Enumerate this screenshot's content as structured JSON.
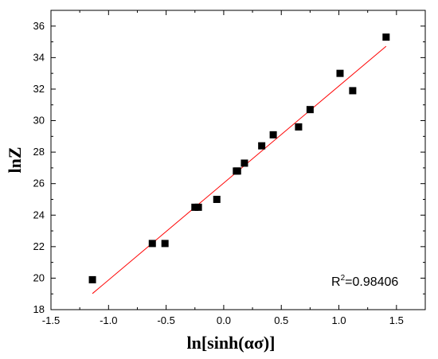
{
  "chart_data": {
    "type": "scatter",
    "xlabel": "ln[sinh(ασ)]",
    "ylabel": "lnZ",
    "xlim": [
      -1.5,
      1.75
    ],
    "ylim": [
      18,
      37
    ],
    "x_ticks": [
      -1.5,
      -1.0,
      -0.5,
      0.0,
      0.5,
      1.0,
      1.5
    ],
    "x_tick_labels": [
      "-1.5",
      "-1.0",
      "-0.5",
      "0.0",
      "0.5",
      "1.0",
      "1.5"
    ],
    "y_ticks": [
      18,
      20,
      22,
      24,
      26,
      28,
      30,
      32,
      34,
      36
    ],
    "y_tick_labels": [
      "18",
      "20",
      "22",
      "24",
      "26",
      "28",
      "30",
      "32",
      "34",
      "36"
    ],
    "grid": false,
    "series": [
      {
        "marker": "square",
        "color": "#000000",
        "x": [
          -1.14,
          -0.62,
          -0.51,
          -0.25,
          -0.22,
          -0.06,
          0.11,
          0.12,
          0.18,
          0.33,
          0.43,
          0.65,
          0.75,
          1.01,
          1.12,
          1.41
        ],
        "y": [
          19.9,
          22.2,
          22.2,
          24.5,
          24.5,
          25.0,
          26.8,
          26.8,
          27.3,
          28.4,
          29.1,
          29.6,
          30.7,
          33.0,
          31.9,
          35.3
        ]
      }
    ],
    "fit_line": {
      "color": "#ff0000",
      "x": [
        -1.14,
        1.41
      ],
      "y": [
        19.02,
        34.72
      ]
    },
    "annotation": {
      "text_main": "R",
      "text_sup": "2",
      "text_rest": "=0.98406",
      "position": "bottom-right"
    }
  }
}
